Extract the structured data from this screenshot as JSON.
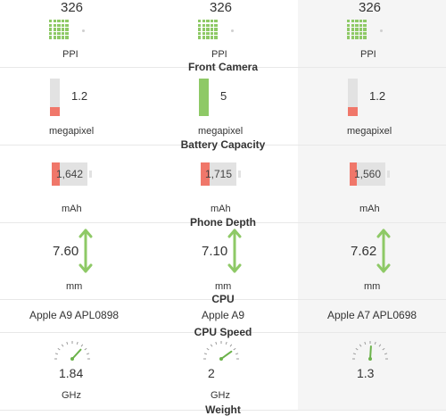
{
  "colors": {
    "accent_green": "#8ec966",
    "accent_red": "#f0776a",
    "bar_bg": "#e2e2e2",
    "highlight_column_bg": "#f5f5f5"
  },
  "sections": {
    "front_camera": "Front Camera",
    "battery_capacity": "Battery Capacity",
    "phone_depth": "Phone Depth",
    "cpu": "CPU",
    "cpu_speed": "CPU Speed",
    "weight": "Weight"
  },
  "phones": [
    {
      "ppi": "326",
      "ppi_unit": "PPI",
      "camera": "1.2",
      "camera_unit": "megapixel",
      "camera_level": 0.24,
      "camera_color": "#f0776a",
      "battery": "1,642",
      "battery_unit": "mAh",
      "battery_level": 0.23,
      "depth": "7.60",
      "depth_unit": "mm",
      "cpu": "Apple A9 APL0898",
      "speed": "1.84",
      "speed_unit": "GHz"
    },
    {
      "ppi": "326",
      "ppi_unit": "PPI",
      "camera": "5",
      "camera_unit": "megapixel",
      "camera_level": 1.0,
      "camera_color": "#8ec966",
      "battery": "1,715",
      "battery_unit": "mAh",
      "battery_level": 0.25,
      "depth": "7.10",
      "depth_unit": "mm",
      "cpu": "Apple A9",
      "speed": "2",
      "speed_unit": "GHz"
    },
    {
      "ppi": "326",
      "ppi_unit": "PPI",
      "camera": "1.2",
      "camera_unit": "megapixel",
      "camera_level": 0.24,
      "camera_color": "#f0776a",
      "battery": "1,560",
      "battery_unit": "mAh",
      "battery_level": 0.2,
      "depth": "7.62",
      "depth_unit": "mm",
      "cpu": "Apple A7 APL0698",
      "speed": "1.3",
      "speed_unit": ""
    }
  ],
  "icons": {
    "ppi": "pixel-grid-icon",
    "depth": "double-arrow-icon",
    "speed": "speedometer-icon"
  }
}
